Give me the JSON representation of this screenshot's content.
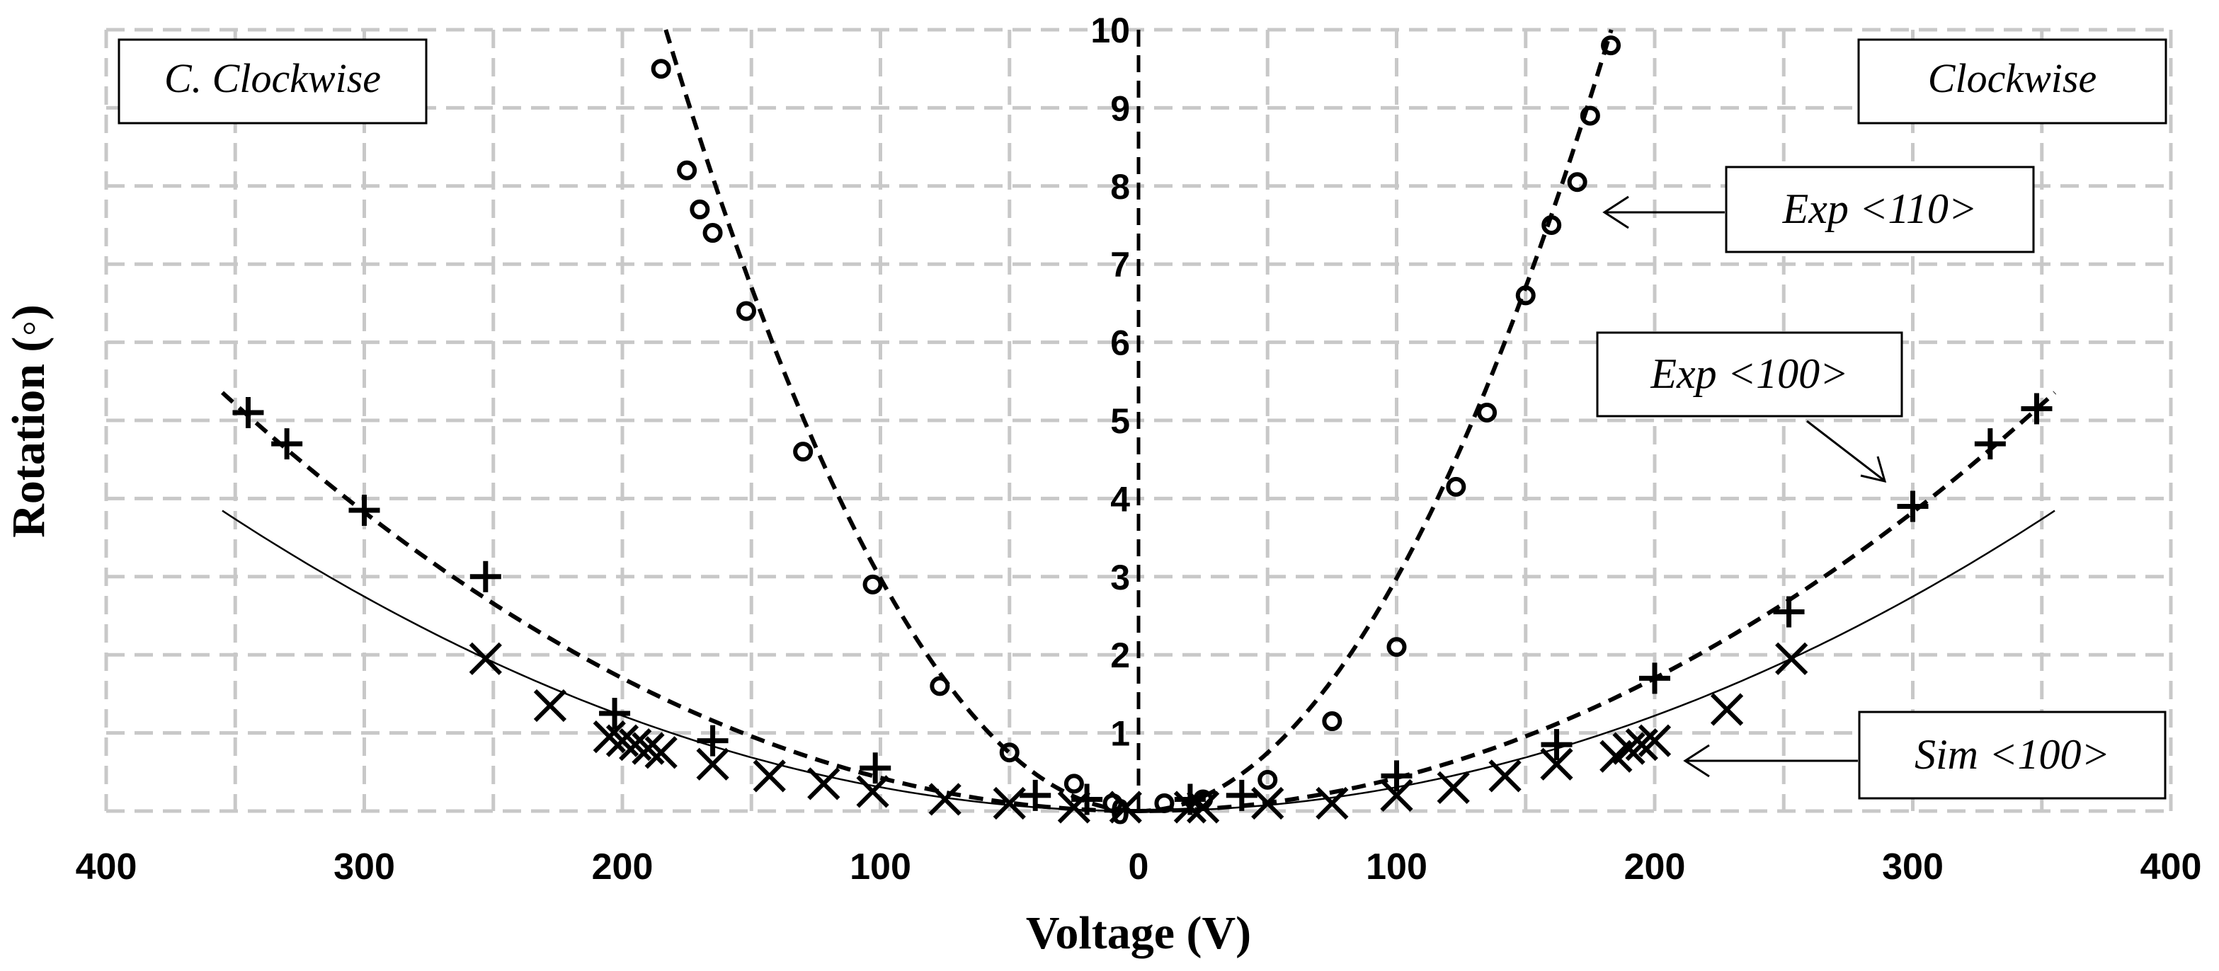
{
  "chart_data": {
    "type": "scatter",
    "xlabel": "Voltage (V)",
    "ylabel": "Rotation (◦)",
    "x_ticks": [
      400,
      300,
      200,
      100,
      0,
      100,
      200,
      300,
      400
    ],
    "y_ticks": [
      0,
      1,
      2,
      3,
      4,
      5,
      6,
      7,
      8,
      9,
      10
    ],
    "xlim": [
      -400,
      400
    ],
    "ylim": [
      0,
      10
    ],
    "grid": true,
    "region_labels": {
      "left": "C. Clockwise",
      "right": "Clockwise"
    },
    "annotations": [
      {
        "text": "Exp <110>",
        "series": 0
      },
      {
        "text": "Exp <100>",
        "series": 1
      },
      {
        "text": "Sim <100>",
        "series": 2
      }
    ],
    "series": [
      {
        "marker": "circle",
        "line": "dashed",
        "fit_coeff": 0.000298,
        "points": [
          [
            -185,
            9.5
          ],
          [
            -175,
            8.2
          ],
          [
            -170,
            7.7
          ],
          [
            -165,
            7.4
          ],
          [
            -152,
            6.4
          ],
          [
            -130,
            4.6
          ],
          [
            -103,
            2.9
          ],
          [
            -77,
            1.6
          ],
          [
            -50,
            0.75
          ],
          [
            -25,
            0.35
          ],
          [
            -10,
            0.1
          ],
          [
            10,
            0.1
          ],
          [
            25,
            0.15
          ],
          [
            50,
            0.4
          ],
          [
            75,
            1.15
          ],
          [
            100,
            2.1
          ],
          [
            123,
            4.15
          ],
          [
            135,
            5.1
          ],
          [
            150,
            6.6
          ],
          [
            160,
            7.5
          ],
          [
            170,
            8.05
          ],
          [
            175,
            8.9
          ],
          [
            183,
            9.8
          ]
        ]
      },
      {
        "marker": "plus",
        "line": "dashed",
        "fit_coeff": 4.25e-05,
        "points": [
          [
            -345,
            5.1
          ],
          [
            -330,
            4.7
          ],
          [
            -300,
            3.85
          ],
          [
            -253,
            3.0
          ],
          [
            -203,
            1.25
          ],
          [
            -165,
            0.9
          ],
          [
            -102,
            0.55
          ],
          [
            -40,
            0.2
          ],
          [
            -20,
            0.15
          ],
          [
            20,
            0.15
          ],
          [
            40,
            0.2
          ],
          [
            100,
            0.45
          ],
          [
            162,
            0.85
          ],
          [
            200,
            1.7
          ],
          [
            252,
            2.55
          ],
          [
            300,
            3.9
          ],
          [
            330,
            4.7
          ],
          [
            348,
            5.15
          ]
        ]
      },
      {
        "marker": "cross",
        "line": "solid",
        "fit_coeff": 3.05e-05,
        "points": [
          [
            -253,
            1.95
          ],
          [
            -228,
            1.35
          ],
          [
            -205,
            0.95
          ],
          [
            -200,
            0.9
          ],
          [
            -195,
            0.85
          ],
          [
            -190,
            0.8
          ],
          [
            -185,
            0.75
          ],
          [
            -165,
            0.6
          ],
          [
            -143,
            0.45
          ],
          [
            -122,
            0.35
          ],
          [
            -103,
            0.25
          ],
          [
            -75,
            0.15
          ],
          [
            -50,
            0.1
          ],
          [
            -25,
            0.05
          ],
          [
            -5,
            0.05
          ],
          [
            20,
            0.05
          ],
          [
            25,
            0.05
          ],
          [
            50,
            0.1
          ],
          [
            75,
            0.1
          ],
          [
            100,
            0.2
          ],
          [
            122,
            0.3
          ],
          [
            142,
            0.45
          ],
          [
            162,
            0.6
          ],
          [
            185,
            0.7
          ],
          [
            190,
            0.8
          ],
          [
            195,
            0.85
          ],
          [
            200,
            0.9
          ],
          [
            228,
            1.3
          ],
          [
            253,
            1.95
          ]
        ]
      }
    ]
  }
}
